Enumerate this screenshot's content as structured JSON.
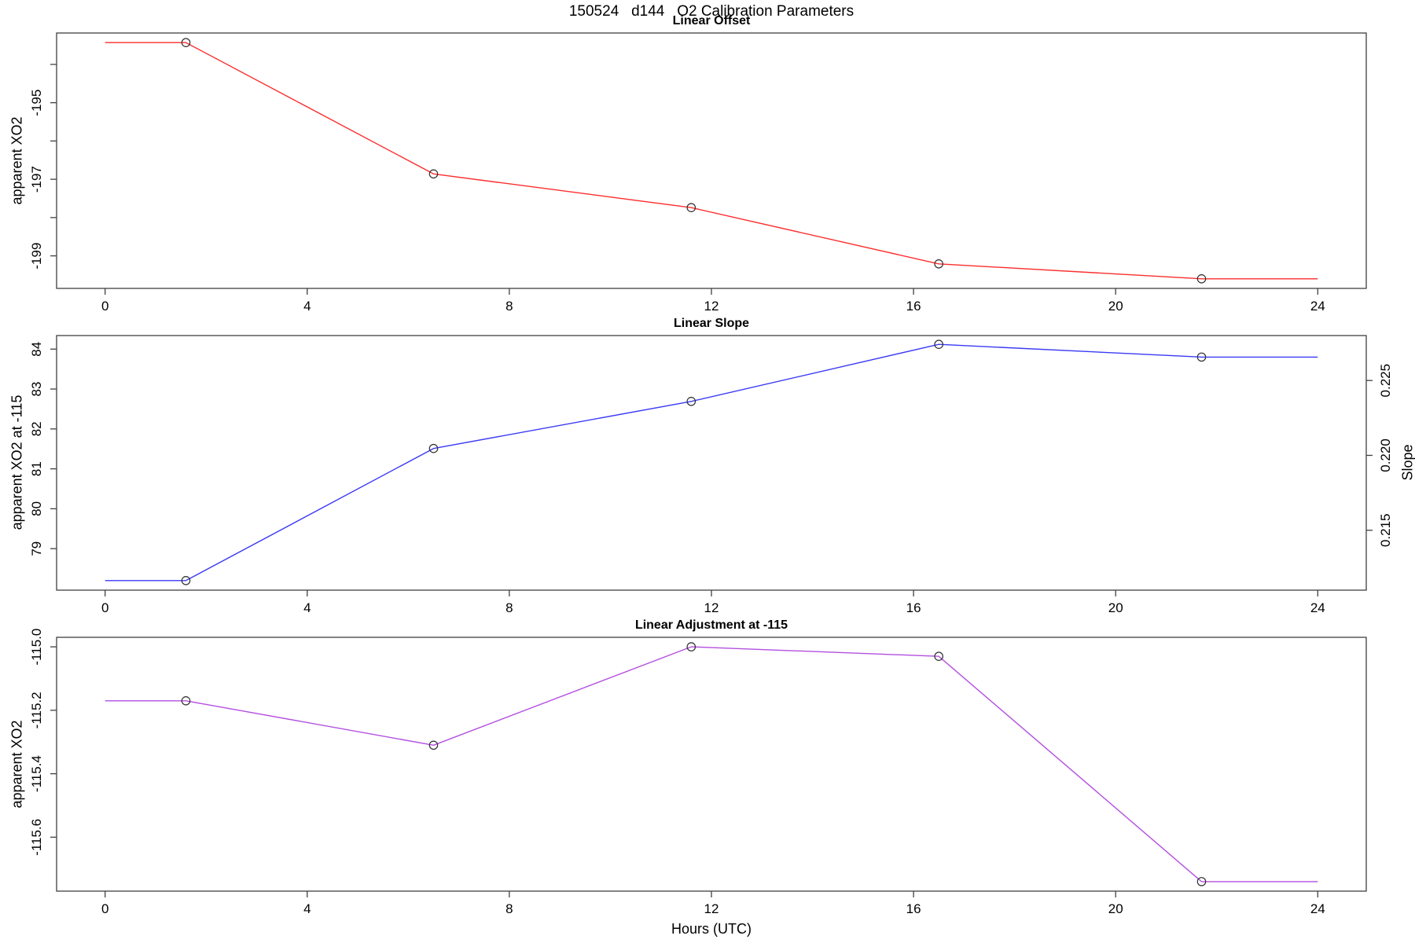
{
  "page_title": "150524   d144   O2 Calibration Parameters",
  "x_axis": {
    "label": "Hours (UTC)",
    "ticks": [
      0,
      4,
      8,
      12,
      16,
      20,
      24
    ],
    "tick_labels": [
      "0",
      "4",
      "8",
      "12",
      "16",
      "20",
      "24"
    ],
    "xlim": [
      -0.96,
      24.96
    ]
  },
  "measurement_hours": [
    1.6,
    6.5,
    11.6,
    16.5,
    21.7
  ],
  "chart_data": [
    {
      "type": "line",
      "title": "Linear Offset",
      "ylabel": "apparent XO2",
      "color": "#fc2d2d",
      "x": [
        0,
        1.6,
        6.5,
        11.6,
        16.5,
        21.7,
        24
      ],
      "y": [
        -193.43,
        -193.43,
        -196.86,
        -197.74,
        -199.21,
        -199.6,
        -199.6
      ],
      "marker_indices": [
        1,
        2,
        3,
        4,
        5
      ],
      "ylim": [
        -199.85,
        -193.18
      ],
      "yticks": [
        -199,
        -198,
        -197,
        -196,
        -195,
        -194
      ],
      "ytick_labels": [
        "-199",
        "",
        "-197",
        "",
        "-195",
        ""
      ],
      "grid": false,
      "legend": "none"
    },
    {
      "type": "line",
      "title": "Linear Slope",
      "ylabel": "apparent XO2 at -115",
      "y2label": "Slope",
      "color": "#3a3af5",
      "x": [
        0,
        1.6,
        6.5,
        11.6,
        16.5,
        21.7,
        24
      ],
      "y": [
        78.2,
        78.2,
        81.51,
        82.69,
        84.12,
        83.8,
        83.8
      ],
      "marker_indices": [
        1,
        2,
        3,
        4,
        5
      ],
      "ylim": [
        77.96,
        84.34
      ],
      "yticks": [
        79,
        80,
        81,
        82,
        83,
        84
      ],
      "ytick_labels": [
        "79",
        "80",
        "81",
        "82",
        "83",
        "84"
      ],
      "y2lim": [
        0.211,
        0.228
      ],
      "y2ticks": [
        0.215,
        0.22,
        0.225
      ],
      "y2tick_labels": [
        "0.215",
        "0.220",
        "0.225"
      ],
      "grid": false,
      "legend": "none"
    },
    {
      "type": "line",
      "title": "Linear Adjustment at -115",
      "ylabel": "apparent XO2",
      "color": "#b44fe0",
      "x": [
        0,
        1.6,
        6.5,
        11.6,
        16.5,
        21.7,
        24
      ],
      "y": [
        -115.17,
        -115.17,
        -115.31,
        -115.0,
        -115.03,
        -115.74,
        -115.74
      ],
      "marker_indices": [
        1,
        2,
        3,
        4,
        5
      ],
      "ylim": [
        -115.77,
        -114.97
      ],
      "yticks": [
        -115.6,
        -115.4,
        -115.2,
        -115.0
      ],
      "ytick_labels": [
        "-115.6",
        "-115.4",
        "-115.2",
        "-115.0"
      ],
      "grid": false,
      "legend": "none"
    }
  ]
}
